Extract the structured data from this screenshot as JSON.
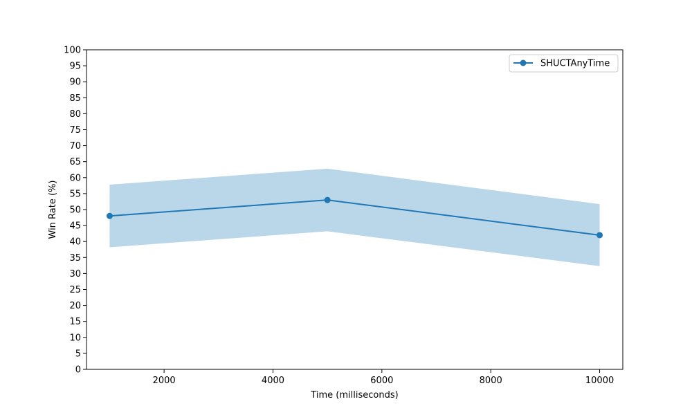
{
  "chart_data": {
    "type": "line",
    "title": "",
    "xlabel": "Time (milliseconds)",
    "ylabel": "Win Rate (%)",
    "xlim": [
      575,
      10425
    ],
    "ylim": [
      0,
      100
    ],
    "x_ticks": [
      2000,
      4000,
      6000,
      8000,
      10000
    ],
    "y_ticks": [
      0,
      5,
      10,
      15,
      20,
      25,
      30,
      35,
      40,
      45,
      50,
      55,
      60,
      65,
      70,
      75,
      80,
      85,
      90,
      95,
      100
    ],
    "grid": false,
    "legend": "top-right",
    "series": [
      {
        "name": "SHUCTAnyTime",
        "color": "#1f77b4",
        "band_color": "#bad6e9",
        "x": [
          1000,
          5000,
          10000
        ],
        "values": [
          48,
          53,
          42
        ],
        "lower": [
          38.2,
          43.2,
          32.3
        ],
        "upper": [
          57.8,
          62.8,
          51.7
        ]
      }
    ]
  }
}
